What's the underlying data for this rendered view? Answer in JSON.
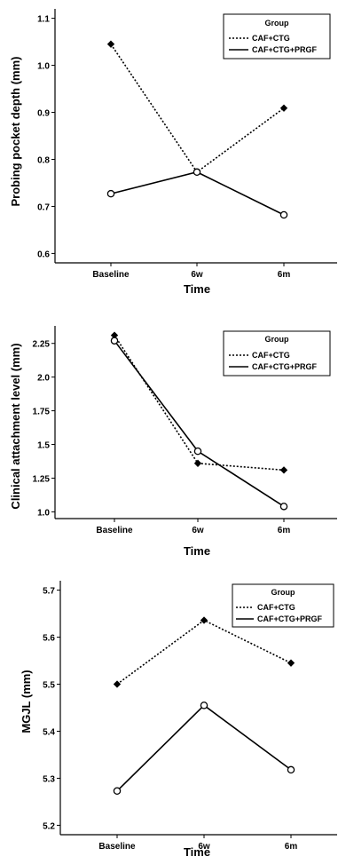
{
  "chart_data": [
    {
      "type": "line",
      "title": "",
      "categories": [
        "Baseline",
        "6w",
        "6m"
      ],
      "xlabel": "Time",
      "ylabel": "Probing pocket depth (mm)",
      "ylim": [
        0.58,
        1.12
      ],
      "yticks": [
        "0.6",
        "0.7",
        "0.8",
        "0.9",
        "1.0",
        "1.1"
      ],
      "ytick_values": [
        0.6,
        0.7,
        0.8,
        0.9,
        1.0,
        1.1
      ],
      "legend": {
        "title": "Group",
        "position": "top-right"
      },
      "series": [
        {
          "name": "CAF+CTG",
          "style": "dotted",
          "marker": "filled-diamond",
          "values": [
            1.045,
            0.773,
            0.909
          ]
        },
        {
          "name": "CAF+CTG+PRGF",
          "style": "solid",
          "marker": "open-circle",
          "values": [
            0.727,
            0.773,
            0.682
          ]
        }
      ]
    },
    {
      "type": "line",
      "title": "",
      "categories": [
        "Baseline",
        "6w",
        "6m"
      ],
      "xlabel": "Time",
      "ylabel": "Clinical attachment level (mm)",
      "ylim": [
        0.95,
        2.38
      ],
      "yticks": [
        "1.0",
        "1.25",
        "1.5",
        "1.75",
        "2.0",
        "2.25"
      ],
      "ytick_values": [
        1.0,
        1.25,
        1.5,
        1.75,
        2.0,
        2.25
      ],
      "legend": {
        "title": "Group",
        "position": "top-right"
      },
      "series": [
        {
          "name": "CAF+CTG",
          "style": "dotted",
          "marker": "filled-diamond",
          "values": [
            2.31,
            1.36,
            1.31
          ]
        },
        {
          "name": "CAF+CTG+PRGF",
          "style": "solid",
          "marker": "open-circle",
          "values": [
            2.27,
            1.45,
            1.04
          ]
        }
      ]
    },
    {
      "type": "line",
      "title": "",
      "categories": [
        "Baseline",
        "6w",
        "6m"
      ],
      "xlabel": "Time",
      "ylabel": "MGJL (mm)",
      "ylim": [
        5.18,
        5.72
      ],
      "yticks": [
        "5.2",
        "5.3",
        "5.4",
        "5.5",
        "5.6",
        "5.7"
      ],
      "ytick_values": [
        5.2,
        5.3,
        5.4,
        5.5,
        5.6,
        5.7
      ],
      "legend": {
        "title": "Group",
        "position": "top-right"
      },
      "series": [
        {
          "name": "CAF+CTG",
          "style": "dotted",
          "marker": "filled-diamond",
          "values": [
            5.5,
            5.636,
            5.545
          ]
        },
        {
          "name": "CAF+CTG+PRGF",
          "style": "solid",
          "marker": "open-circle",
          "values": [
            5.273,
            5.455,
            5.318
          ]
        }
      ]
    }
  ]
}
